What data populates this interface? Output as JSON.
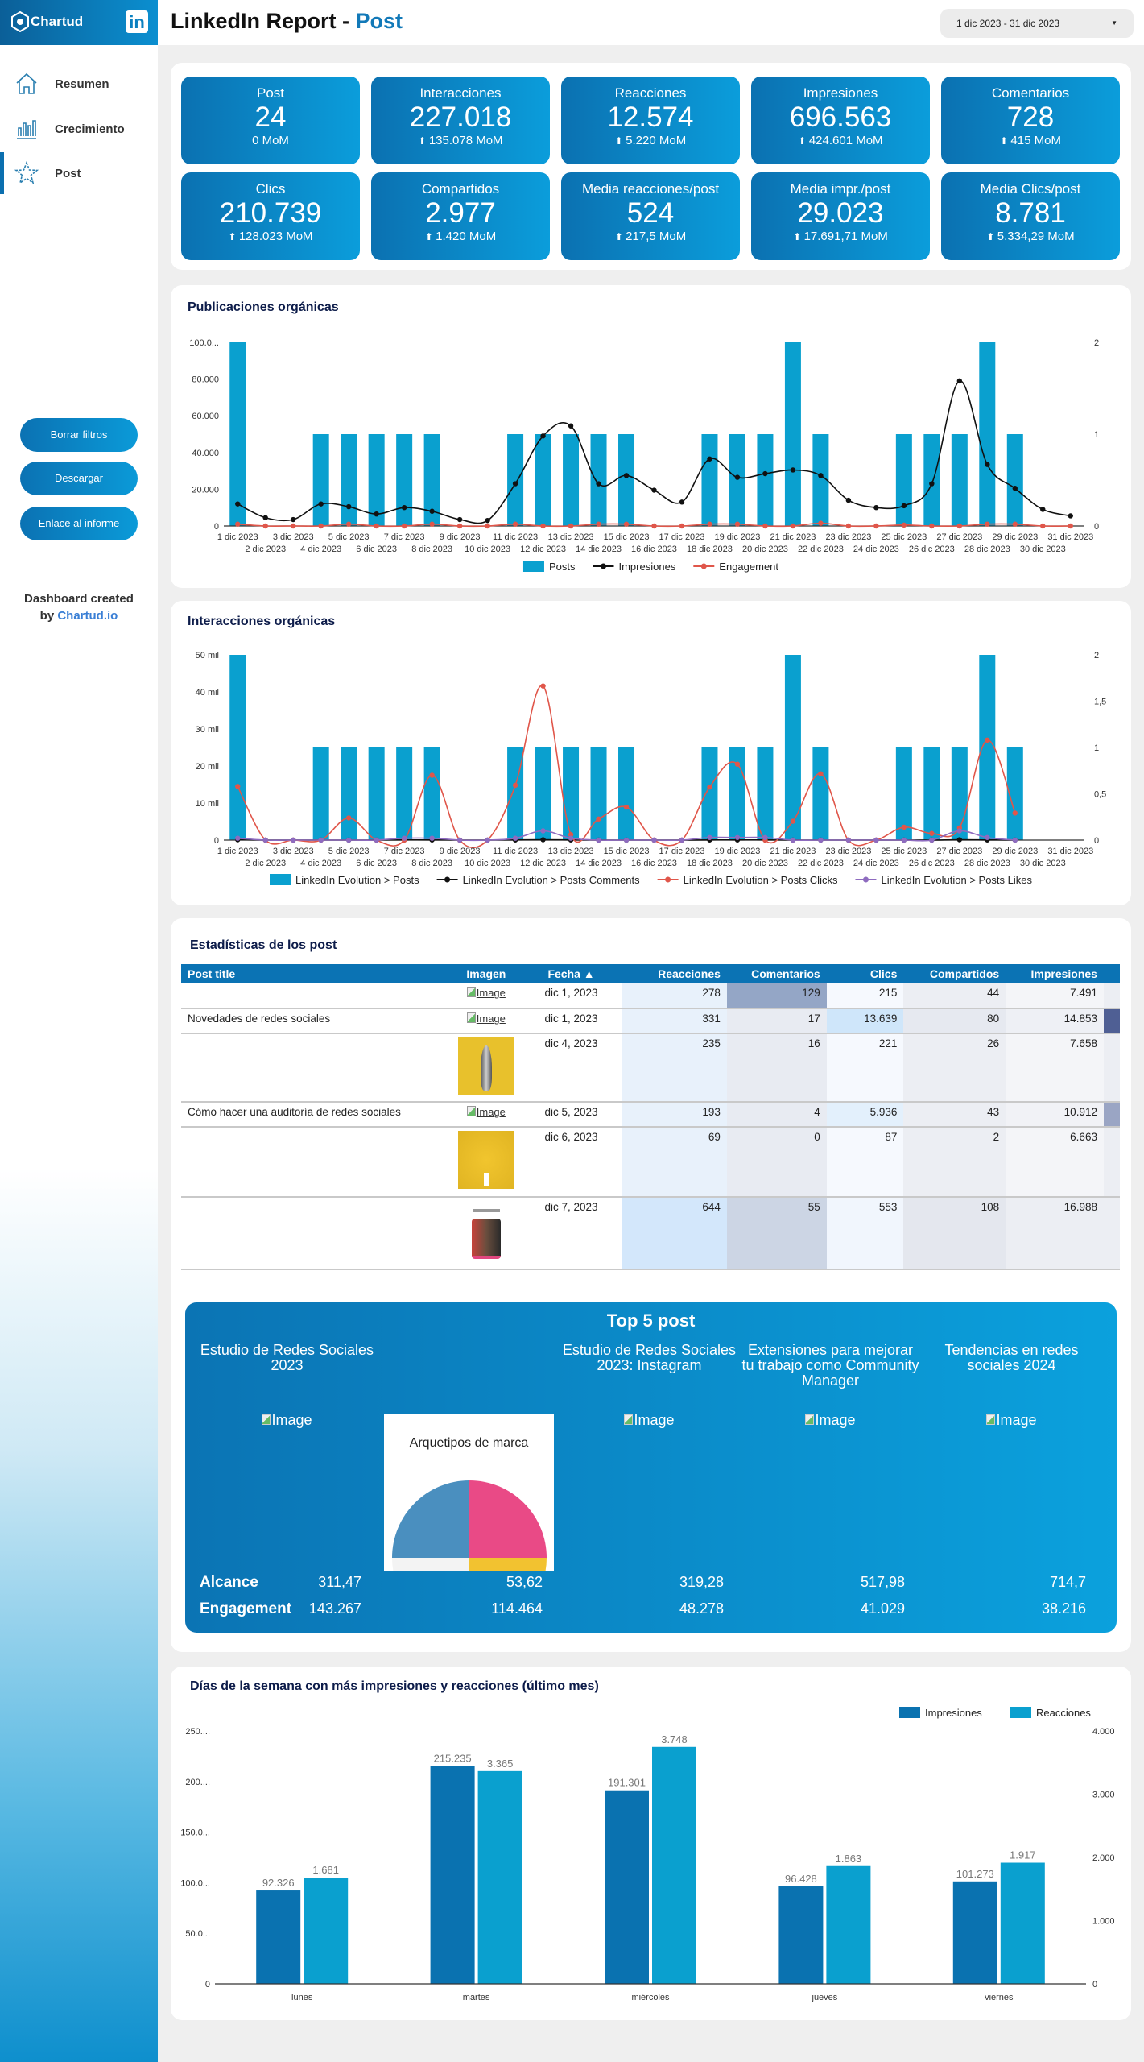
{
  "header": {
    "logo_text": "Chartud",
    "linkedin_icon": "in",
    "title_prefix": "LinkedIn Report - ",
    "title_page": "Post",
    "date_range": "1 dic 2023 - 31 dic 2023"
  },
  "sidebar": {
    "nav": [
      {
        "label": "Resumen",
        "icon": "home-icon"
      },
      {
        "label": "Crecimiento",
        "icon": "bar-chart-icon"
      },
      {
        "label": "Post",
        "icon": "star-icon",
        "active": true
      }
    ],
    "buttons": [
      "Borrar filtros",
      "Descargar",
      "Enlace al informe"
    ],
    "credit_line1": "Dashboard created",
    "credit_by": "by ",
    "credit_link": "Chartud.io"
  },
  "kpis": [
    {
      "label": "Post",
      "value": "24",
      "mom": "0 MoM",
      "up": false
    },
    {
      "label": "Interacciones",
      "value": "227.018",
      "mom": "135.078 MoM",
      "up": true
    },
    {
      "label": "Reacciones",
      "value": "12.574",
      "mom": "5.220 MoM",
      "up": true
    },
    {
      "label": "Impresiones",
      "value": "696.563",
      "mom": "424.601 MoM",
      "up": true
    },
    {
      "label": "Comentarios",
      "value": "728",
      "mom": "415 MoM",
      "up": true
    },
    {
      "label": "Clics",
      "value": "210.739",
      "mom": "128.023 MoM",
      "up": true
    },
    {
      "label": "Compartidos",
      "value": "2.977",
      "mom": "1.420 MoM",
      "up": true
    },
    {
      "label": "Media reacciones/post",
      "value": "524",
      "mom": "217,5 MoM",
      "up": true
    },
    {
      "label": "Media impr./post",
      "value": "29.023",
      "mom": "17.691,71 MoM",
      "up": true
    },
    {
      "label": "Media Clics/post",
      "value": "8.781",
      "mom": "5.334,29 MoM",
      "up": true
    }
  ],
  "table": {
    "title": "Estadísticas de los post",
    "columns": [
      "Post title",
      "Imagen",
      "Fecha ▲",
      "Reacciones",
      "Comentarios",
      "Clics",
      "Compartidos",
      "Impresiones"
    ],
    "rows": [
      {
        "title": "",
        "image": "Image",
        "fecha": "dic 1, 2023",
        "reacciones": "278",
        "comentarios": "129",
        "clics": "215",
        "compartidos": "44",
        "impresiones": "7.491"
      },
      {
        "title": "Novedades de redes sociales",
        "image": "Image",
        "fecha": "dic 1, 2023",
        "reacciones": "331",
        "comentarios": "17",
        "clics": "13.639",
        "compartidos": "80",
        "impresiones": "14.853"
      },
      {
        "title": "",
        "image": "rocket-thumbnail",
        "fecha": "dic 4, 2023",
        "reacciones": "235",
        "comentarios": "16",
        "clics": "221",
        "compartidos": "26",
        "impresiones": "7.658"
      },
      {
        "title": "Cómo hacer una auditoría de redes sociales",
        "image": "Image",
        "fecha": "dic 5, 2023",
        "reacciones": "193",
        "comentarios": "4",
        "clics": "5.936",
        "compartidos": "43",
        "impresiones": "10.912"
      },
      {
        "title": "",
        "image": "yellow-thumbnail",
        "fecha": "dic 6, 2023",
        "reacciones": "69",
        "comentarios": "0",
        "clics": "87",
        "compartidos": "2",
        "impresiones": "6.663"
      },
      {
        "title": "",
        "image": "photo-thumbnail",
        "fecha": "dic 7, 2023",
        "reacciones": "644",
        "comentarios": "55",
        "clics": "553",
        "compartidos": "108",
        "impresiones": "16.988"
      }
    ]
  },
  "top5": {
    "title": "Top 5 post",
    "row_labels": [
      "Alcance",
      "Engagement"
    ],
    "posts": [
      {
        "title": "Estudio de Redes Sociales 2023",
        "image": "Image",
        "alcance": "311,47",
        "engagement": "143.267"
      },
      {
        "title": "",
        "image_picture_text": "Arquetipos de marca",
        "alcance": "53,62",
        "engagement": "114.464"
      },
      {
        "title": "Estudio de Redes Sociales 2023: Instagram",
        "image": "Image",
        "alcance": "319,28",
        "engagement": "48.278"
      },
      {
        "title": "Extensiones para mejorar tu trabajo como Community Manager",
        "image": "Image",
        "alcance": "517,98",
        "engagement": "41.029"
      },
      {
        "title": "Tendencias en redes sociales 2024",
        "image": "Image",
        "alcance": "714,7",
        "engagement": "38.216"
      }
    ]
  },
  "chart_data": [
    {
      "type": "bar+line",
      "title": "Publicaciones orgánicas",
      "categories": [
        "1 dic 2023",
        "2 dic 2023",
        "3 dic 2023",
        "4 dic 2023",
        "5 dic 2023",
        "6 dic 2023",
        "7 dic 2023",
        "8 dic 2023",
        "9 dic 2023",
        "10 dic 2023",
        "11 dic 2023",
        "12 dic 2023",
        "13 dic 2023",
        "14 dic 2023",
        "15 dic 2023",
        "16 dic 2023",
        "17 dic 2023",
        "18 dic 2023",
        "19 dic 2023",
        "20 dic 2023",
        "21 dic 2023",
        "22 dic 2023",
        "23 dic 2023",
        "24 dic 2023",
        "25 dic 2023",
        "26 dic 2023",
        "27 dic 2023",
        "28 dic 2023",
        "29 dic 2023",
        "30 dic 2023",
        "31 dic 2023"
      ],
      "y_left": {
        "range": [
          0,
          100000
        ],
        "tick_labels": [
          "0",
          "20.000",
          "40.000",
          "60.000",
          "80.000",
          "100.0..."
        ]
      },
      "y_right": {
        "range": [
          0,
          2
        ],
        "tick_labels": [
          "0",
          "1",
          "2"
        ]
      },
      "legend": "bottom",
      "series": [
        {
          "name": "Posts",
          "type": "bar",
          "axis": "right",
          "color": "#0aa0cf",
          "values": [
            2,
            0,
            0,
            1,
            1,
            1,
            1,
            1,
            0,
            0,
            1,
            1,
            1,
            1,
            1,
            0,
            0,
            1,
            1,
            1,
            2,
            1,
            0,
            0,
            1,
            1,
            1,
            2,
            1,
            0,
            0
          ]
        },
        {
          "name": "Impresiones",
          "type": "line",
          "axis": "left",
          "color": "#111111",
          "values": [
            12000,
            4500,
            3500,
            12000,
            10500,
            6500,
            10000,
            8000,
            3500,
            3000,
            23000,
            49000,
            54500,
            23000,
            27500,
            19500,
            13000,
            36500,
            26500,
            28500,
            30500,
            27500,
            14000,
            10000,
            11000,
            23000,
            79000,
            33500,
            20500,
            9000,
            5500
          ]
        },
        {
          "name": "Engagement",
          "type": "line",
          "axis": "right",
          "color": "#e0564a",
          "values": [
            0.02,
            0,
            0,
            0,
            0.02,
            0,
            0,
            0.02,
            0,
            0,
            0.02,
            0,
            0,
            0.02,
            0.02,
            0,
            0,
            0.02,
            0.02,
            0,
            0,
            0.03,
            0,
            0,
            0.01,
            0,
            0,
            0.02,
            0.02,
            0,
            0
          ]
        }
      ]
    },
    {
      "type": "bar+line",
      "title": "Interacciones orgánicas",
      "categories": [
        "1 dic 2023",
        "2 dic 2023",
        "3 dic 2023",
        "4 dic 2023",
        "5 dic 2023",
        "6 dic 2023",
        "7 dic 2023",
        "8 dic 2023",
        "9 dic 2023",
        "10 dic 2023",
        "11 dic 2023",
        "12 dic 2023",
        "13 dic 2023",
        "14 dic 2023",
        "15 dic 2023",
        "16 dic 2023",
        "17 dic 2023",
        "18 dic 2023",
        "19 dic 2023",
        "20 dic 2023",
        "21 dic 2023",
        "22 dic 2023",
        "23 dic 2023",
        "24 dic 2023",
        "25 dic 2023",
        "26 dic 2023",
        "27 dic 2023",
        "28 dic 2023",
        "29 dic 2023",
        "30 dic 2023",
        "31 dic 2023"
      ],
      "y_left": {
        "range": [
          0,
          50000
        ],
        "tick_labels": [
          "0",
          "10 mil",
          "20 mil",
          "30 mil",
          "40 mil",
          "50 mil"
        ]
      },
      "y_right": {
        "range": [
          0,
          2
        ],
        "tick_labels": [
          "0",
          "0,5",
          "1",
          "1,5",
          "2"
        ]
      },
      "legend": "bottom",
      "series": [
        {
          "name": "LinkedIn Evolution > Posts",
          "type": "bar",
          "axis": "right",
          "color": "#0aa0cf",
          "values": [
            2,
            0,
            0,
            1,
            1,
            1,
            1,
            1,
            0,
            0,
            1,
            1,
            1,
            1,
            1,
            0,
            0,
            1,
            1,
            1,
            2,
            1,
            0,
            0,
            1,
            1,
            1,
            2,
            1,
            0,
            0
          ]
        },
        {
          "name": "LinkedIn Evolution > Posts Comments",
          "type": "line",
          "axis": "left",
          "color": "#111111",
          "values": [
            100,
            0,
            0,
            0,
            0,
            0,
            50,
            50,
            0,
            0,
            50,
            100,
            50,
            0,
            0,
            0,
            0,
            50,
            50,
            50,
            0,
            0,
            0,
            0,
            0,
            0,
            100,
            50,
            0,
            null,
            null
          ]
        },
        {
          "name": "LinkedIn Evolution > Posts Clicks",
          "type": "line",
          "axis": "left",
          "color": "#e0564a",
          "values": [
            14500,
            0,
            0,
            0,
            6000,
            0,
            0,
            17500,
            0,
            0,
            14800,
            41600,
            1500,
            5700,
            8900,
            0,
            0,
            14300,
            20500,
            0,
            5100,
            17900,
            0,
            0,
            3500,
            1800,
            3300,
            27000,
            7300,
            null,
            null
          ]
        },
        {
          "name": "LinkedIn Evolution > Posts Likes",
          "type": "line",
          "axis": "left",
          "color": "#8e6bbf",
          "values": [
            500,
            0,
            0,
            0,
            0,
            0,
            500,
            500,
            0,
            0,
            500,
            2500,
            500,
            0,
            0,
            0,
            0,
            700,
            700,
            700,
            0,
            0,
            0,
            0,
            0,
            0,
            2500,
            700,
            0,
            null,
            null
          ]
        }
      ]
    },
    {
      "type": "bar",
      "title": "Días de la semana con más impresiones y reacciones (último mes)",
      "categories": [
        "lunes",
        "martes",
        "miércoles",
        "jueves",
        "viernes"
      ],
      "y_left": {
        "range": [
          0,
          250000
        ],
        "tick_labels": [
          "0",
          "50.0...",
          "100.0...",
          "150.0...",
          "200....",
          "250...."
        ]
      },
      "y_right": {
        "range": [
          0,
          4000
        ],
        "tick_labels": [
          "0",
          "1.000",
          "2.000",
          "3.000",
          "4.000"
        ]
      },
      "legend": "top-right",
      "series": [
        {
          "name": "Impresiones",
          "axis": "left",
          "color": "#0a72b0",
          "values": [
            92326,
            215235,
            191301,
            96428,
            101273
          ],
          "labels": [
            "92.326",
            "215.235",
            "191.301",
            "96.428",
            "101.273"
          ]
        },
        {
          "name": "Reacciones",
          "axis": "right",
          "color": "#0aa0cf",
          "values": [
            1681,
            3365,
            3748,
            1863,
            1917
          ],
          "labels": [
            "1.681",
            "3.365",
            "3.748",
            "1.863",
            "1.917"
          ]
        }
      ]
    }
  ]
}
